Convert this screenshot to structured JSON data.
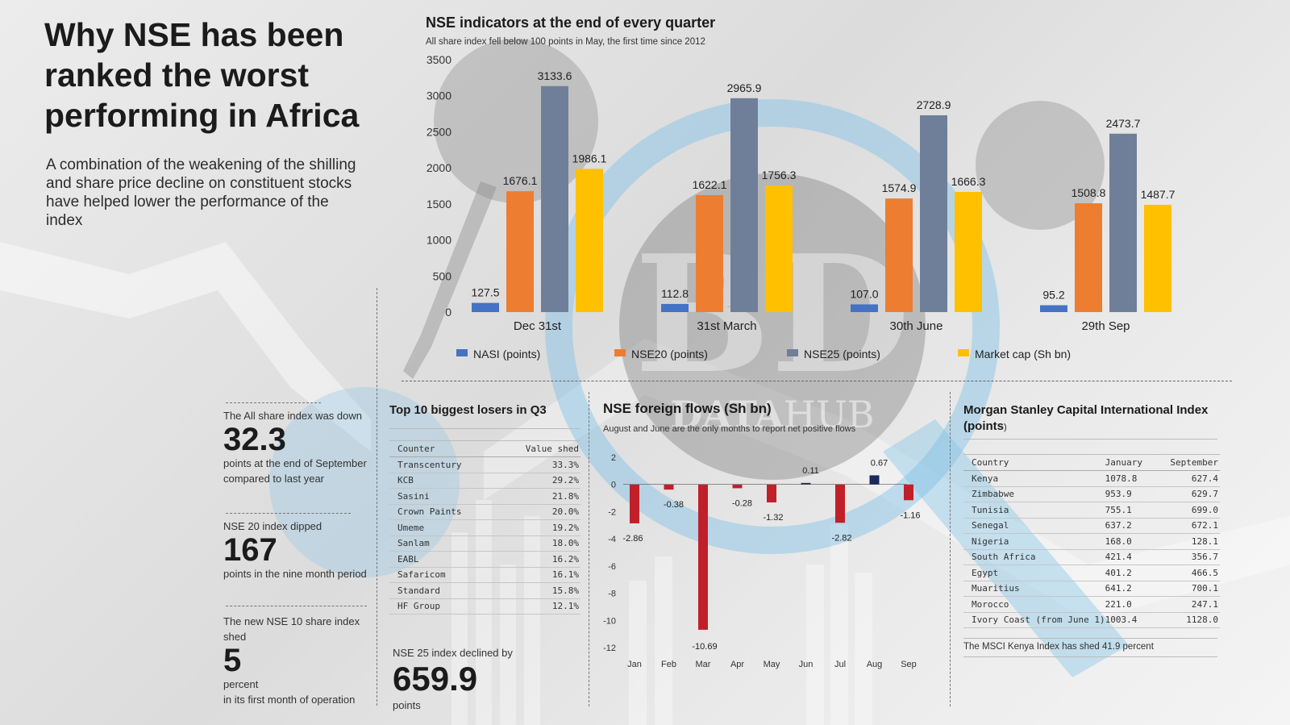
{
  "headline": "Why NSE has been ranked the worst performing in Africa",
  "intro": "A combination of the weakening of the shilling and share price decline on constituent stocks have helped lower the performance of the index",
  "watermark": {
    "big": "BD",
    "small_bold": "DATA",
    "small_light": "HUB"
  },
  "stats": {
    "all_share": {
      "label": "The All share index was down",
      "value": "32.3",
      "note": "points at the end of September compared to last year"
    },
    "nse20": {
      "label": "NSE 20 index dipped",
      "value": "167",
      "note": "points in the nine month period"
    },
    "nse10": {
      "label": "The new NSE 10 share index shed",
      "value": "5",
      "note_a": "percent",
      "note_b": "in its first month of operation"
    },
    "nse25": {
      "label": "NSE 25 index declined by",
      "value": "659.9",
      "note": "points"
    }
  },
  "losers": {
    "title": "Top 10 biggest losers in Q3",
    "headers": [
      "Counter",
      "Value shed"
    ],
    "rows": [
      [
        "Transcentury",
        "33.3%"
      ],
      [
        "KCB",
        "29.2%"
      ],
      [
        "Sasini",
        "21.8%"
      ],
      [
        "Crown Paints",
        "20.0%"
      ],
      [
        "Umeme",
        "19.2%"
      ],
      [
        "Sanlam",
        "18.0%"
      ],
      [
        "EABL",
        "16.2%"
      ],
      [
        "Safaricom",
        "16.1%"
      ],
      [
        "Standard",
        "15.8%"
      ],
      [
        "HF Group",
        "12.1%"
      ]
    ]
  },
  "msci": {
    "title": "Morgan Stanley Capital International Index",
    "title_line2": "(points",
    "title_tail": ")",
    "headers": [
      "Country",
      "January",
      "September"
    ],
    "rows": [
      [
        "Kenya",
        "1078.8",
        "627.4"
      ],
      [
        "Zimbabwe",
        "953.9",
        "629.7"
      ],
      [
        "Tunisia",
        "755.1",
        "699.0"
      ],
      [
        "Senegal",
        "637.2",
        "672.1"
      ],
      [
        "Nigeria",
        "168.0",
        "128.1"
      ],
      [
        "South Africa",
        "421.4",
        "356.7"
      ],
      [
        "Egypt",
        "401.2",
        "466.5"
      ],
      [
        "Muaritius",
        "641.2",
        "700.1"
      ],
      [
        "Morocco",
        "221.0",
        "247.1"
      ],
      [
        "Ivory Coast (from June 1)",
        "1003.4",
        "1128.0"
      ]
    ],
    "footnote": "The MSCI Kenya Index has shed 41.9 percent"
  },
  "chart_data": [
    {
      "type": "bar",
      "title": "NSE indicators at the end of every quarter",
      "subtitle": "All share index fell below 100 points in May, the first time since 2012",
      "categories": [
        "Dec 31st",
        "31st March",
        "30th June",
        "29th Sep"
      ],
      "series": [
        {
          "name": "NASI (points)",
          "color": "#4472c4",
          "values": [
            127.5,
            112.8,
            107.0,
            95.2
          ]
        },
        {
          "name": "NSE20 (points)",
          "color": "#ed7d31",
          "values": [
            1676.1,
            1622.1,
            1574.9,
            1508.8
          ]
        },
        {
          "name": "NSE25 (points)",
          "color": "#6f7f99",
          "values": [
            3133.6,
            2965.9,
            2728.9,
            2473.7
          ]
        },
        {
          "name": "Market cap (Sh bn)",
          "color": "#ffc000",
          "values": [
            1986.1,
            1756.3,
            1666.3,
            1487.7
          ]
        }
      ],
      "data_labels": [
        [
          "127.5",
          "112.8",
          "107.0",
          "95.2"
        ],
        [
          "1676.1",
          "1622.1",
          "1574.9",
          "1508.8"
        ],
        [
          "3133.6",
          "2965.9",
          "2728.9",
          "2473.7"
        ],
        [
          "1986.1",
          "1756.3",
          "1666.3",
          "1487.7"
        ]
      ],
      "ylim": [
        0,
        3500
      ],
      "yticks": [
        0,
        500,
        1000,
        1500,
        2000,
        2500,
        3000,
        3500
      ],
      "legend": "bottom",
      "grid": false
    },
    {
      "type": "bar",
      "title": "NSE foreign flows (Sh bn)",
      "subtitle": "August and June are the only months to report net positive flows",
      "categories": [
        "Jan",
        "Feb",
        "Mar",
        "Apr",
        "May",
        "Jun",
        "Jul",
        "Aug",
        "Sep"
      ],
      "values": [
        -2.86,
        -0.38,
        -10.69,
        -0.28,
        -1.32,
        0.11,
        -2.82,
        0.67,
        -1.16
      ],
      "labels": [
        "-2.86",
        "-0.38",
        "-10.69",
        "-0.28",
        "-1.32",
        "0.11",
        "-2.82",
        "0.67",
        "-1.16"
      ],
      "ylim": [
        -12,
        2
      ],
      "yticks": [
        2,
        0,
        -2,
        -4,
        -6,
        -8,
        -10,
        -12
      ],
      "colors": {
        "negative": "#c0202a",
        "positive": "#1a2a5a",
        "zero_line": "#555555"
      },
      "grid": false
    }
  ]
}
